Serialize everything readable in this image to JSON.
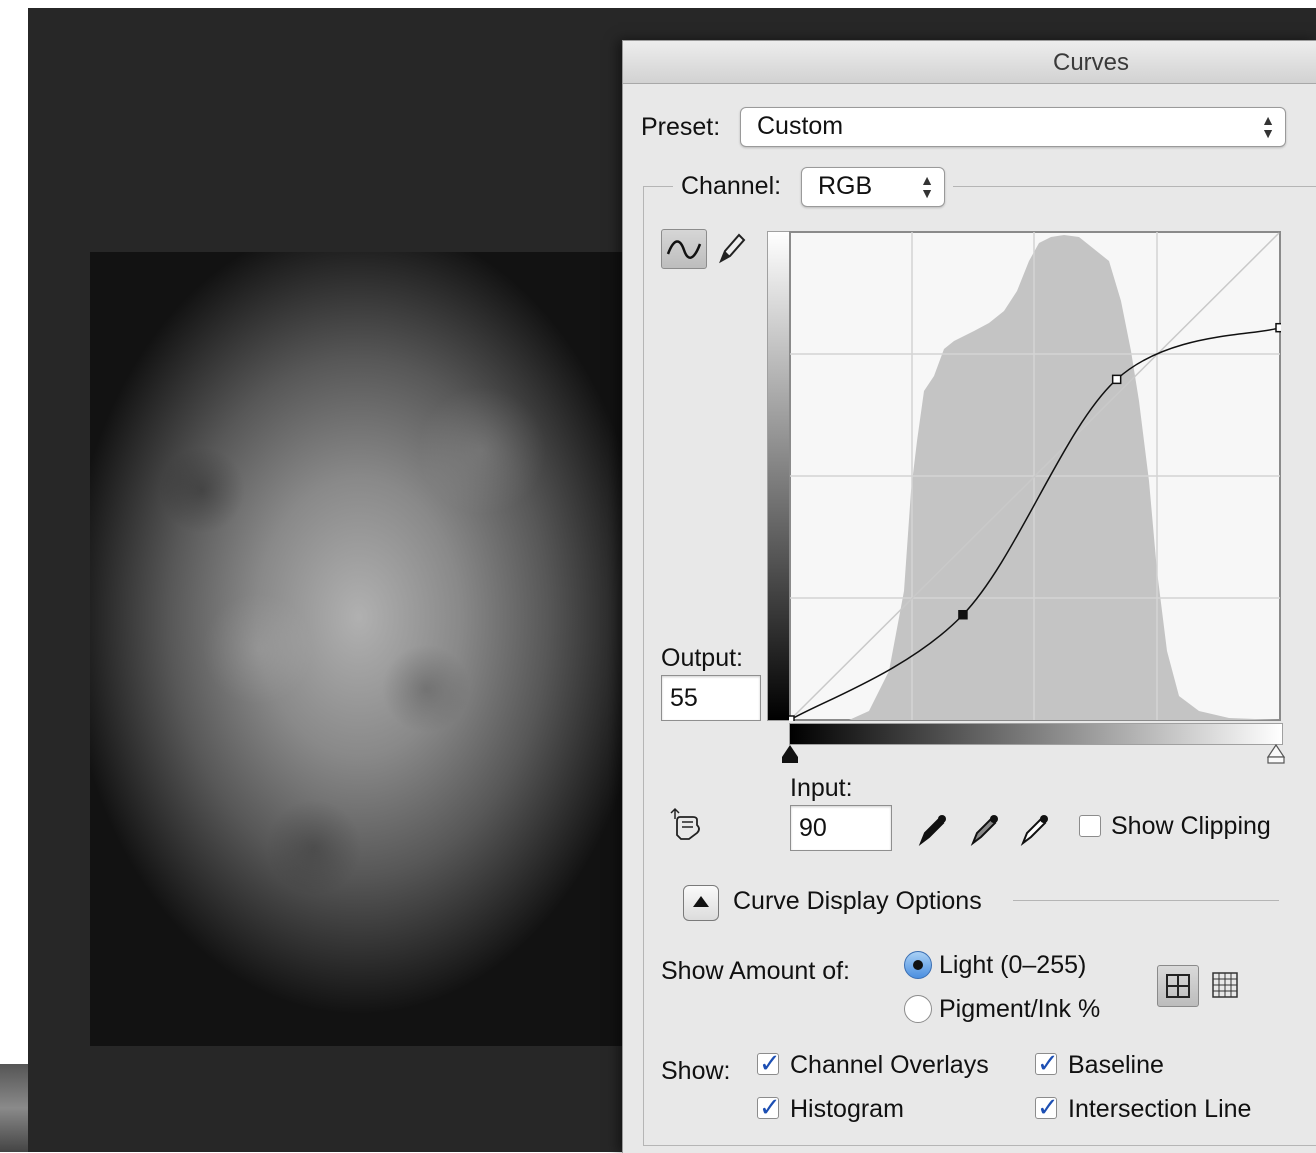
{
  "dialog": {
    "title": "Curves"
  },
  "preset": {
    "label": "Preset:",
    "value": "Custom"
  },
  "channel": {
    "label": "Channel:",
    "value": "RGB"
  },
  "output": {
    "label": "Output:",
    "value": "55"
  },
  "input": {
    "label": "Input:",
    "value": "90"
  },
  "show_clipping": {
    "label": "Show Clipping",
    "checked": false
  },
  "curve_display_options": {
    "label": "Curve Display Options",
    "expanded": true
  },
  "show_amount": {
    "label": "Show Amount of:",
    "options": [
      {
        "label": "Light  (0–255)",
        "selected": true
      },
      {
        "label": "Pigment/Ink %",
        "selected": false
      }
    ]
  },
  "show": {
    "label": "Show:",
    "options": [
      {
        "label": "Channel Overlays",
        "checked": true
      },
      {
        "label": "Baseline",
        "checked": true
      },
      {
        "label": "Histogram",
        "checked": true
      },
      {
        "label": "Intersection Line",
        "checked": true
      }
    ]
  },
  "grid_mode": "4x4",
  "colors": {
    "canvas_bg": "#272727",
    "dialog_bg": "#e8e8e8",
    "accent": "#1d4fb3"
  },
  "icons": [
    "curve-tool-icon",
    "pencil-tool-icon",
    "on-image-adjust-hand-icon",
    "black-eyedropper-icon",
    "gray-eyedropper-icon",
    "white-eyedropper-icon",
    "simple-grid-icon",
    "detailed-grid-icon"
  ],
  "curve": {
    "points": [
      [
        0,
        0
      ],
      [
        90,
        55
      ],
      [
        170,
        178
      ],
      [
        255,
        205
      ]
    ],
    "selected_point": [
      90,
      55
    ]
  }
}
